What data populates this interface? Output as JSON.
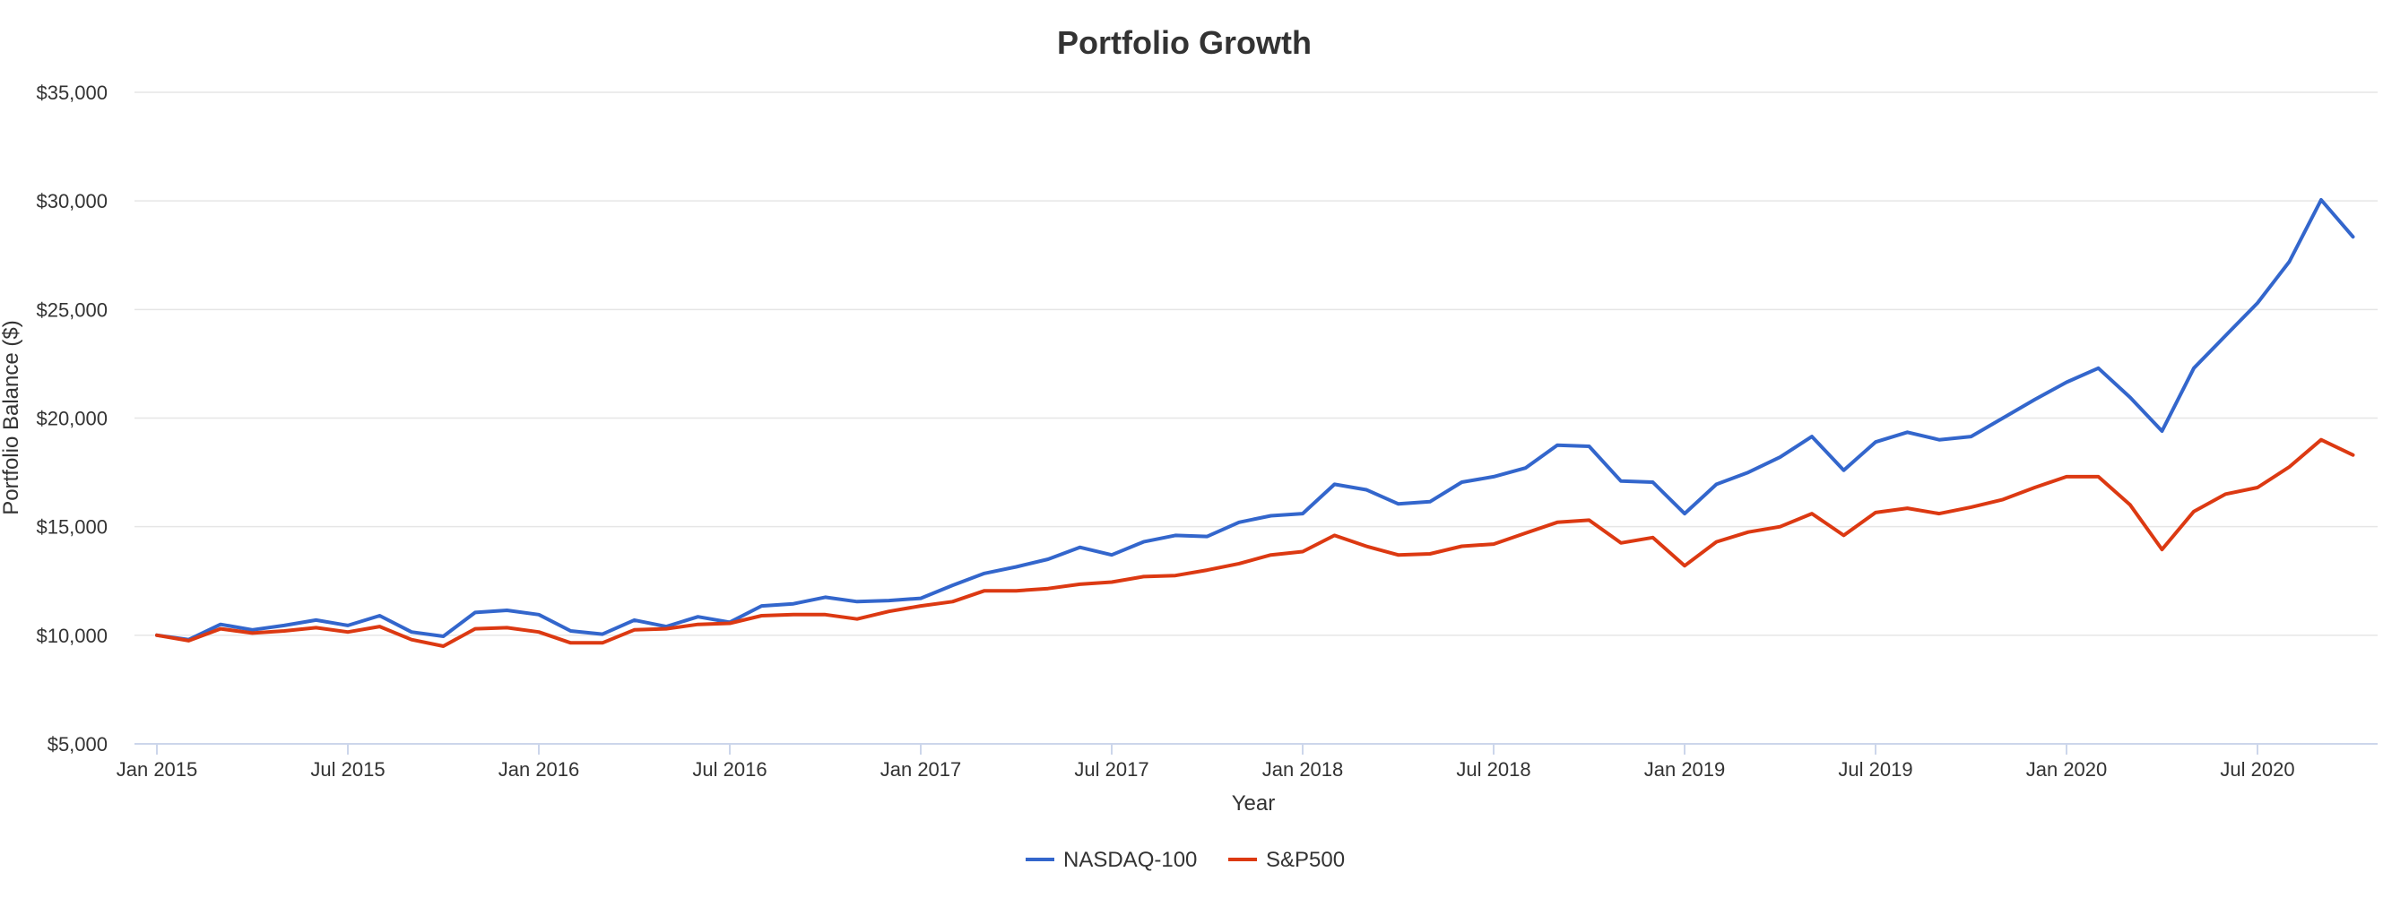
{
  "chart_data": {
    "type": "line",
    "title": "Portfolio Growth",
    "xlabel": "Year",
    "ylabel": "Portfolio Balance ($)",
    "ylim": [
      5000,
      35000
    ],
    "yticks": [
      5000,
      10000,
      15000,
      20000,
      25000,
      30000,
      35000
    ],
    "ytick_labels": [
      "$5,000",
      "$10,000",
      "$15,000",
      "$20,000",
      "$25,000",
      "$30,000",
      "$35,000"
    ],
    "x_start": "Jan 2015",
    "x_count": 70,
    "xticks": [
      {
        "index": 0,
        "label": "Jan 2015"
      },
      {
        "index": 6,
        "label": "Jul 2015"
      },
      {
        "index": 12,
        "label": "Jan 2016"
      },
      {
        "index": 18,
        "label": "Jul 2016"
      },
      {
        "index": 24,
        "label": "Jan 2017"
      },
      {
        "index": 30,
        "label": "Jul 2017"
      },
      {
        "index": 36,
        "label": "Jan 2018"
      },
      {
        "index": 42,
        "label": "Jul 2018"
      },
      {
        "index": 48,
        "label": "Jan 2019"
      },
      {
        "index": 54,
        "label": "Jul 2019"
      },
      {
        "index": 60,
        "label": "Jan 2020"
      },
      {
        "index": 66,
        "label": "Jul 2020"
      }
    ],
    "grid": true,
    "legend_position": "bottom-center",
    "series": [
      {
        "name": "NASDAQ-100",
        "color": "#3366cc",
        "values": [
          10000,
          9800,
          10500,
          10250,
          10450,
          10700,
          10450,
          10900,
          10150,
          9950,
          11050,
          11150,
          10950,
          10200,
          10050,
          10700,
          10400,
          10850,
          10600,
          11350,
          11450,
          11750,
          11550,
          11600,
          11700,
          12300,
          12850,
          13150,
          13500,
          14050,
          13700,
          14300,
          14600,
          14550,
          15200,
          15500,
          15600,
          16950,
          16700,
          16050,
          16150,
          17050,
          17300,
          17700,
          18750,
          18700,
          17100,
          17050,
          15600,
          16950,
          17500,
          18200,
          19150,
          17600,
          18900,
          19350,
          19000,
          19150,
          20000,
          20850,
          21650,
          22300,
          20950,
          19400,
          22300,
          23800,
          25300,
          27200,
          30050,
          28350
        ]
      },
      {
        "name": "S&P500",
        "color": "#dc3912",
        "values": [
          10000,
          9750,
          10300,
          10100,
          10200,
          10350,
          10150,
          10400,
          9800,
          9500,
          10300,
          10350,
          10150,
          9650,
          9650,
          10250,
          10300,
          10500,
          10550,
          10900,
          10950,
          10950,
          10750,
          11100,
          11350,
          11550,
          12050,
          12050,
          12150,
          12350,
          12450,
          12700,
          12750,
          13000,
          13300,
          13700,
          13850,
          14600,
          14100,
          13700,
          13750,
          14100,
          14200,
          14700,
          15200,
          15300,
          14250,
          14500,
          13200,
          14300,
          14750,
          15000,
          15600,
          14600,
          15650,
          15850,
          15600,
          15900,
          16250,
          16800,
          17300,
          17300,
          16000,
          13950,
          15700,
          16500,
          16800,
          17750,
          19000,
          18300
        ]
      }
    ]
  }
}
